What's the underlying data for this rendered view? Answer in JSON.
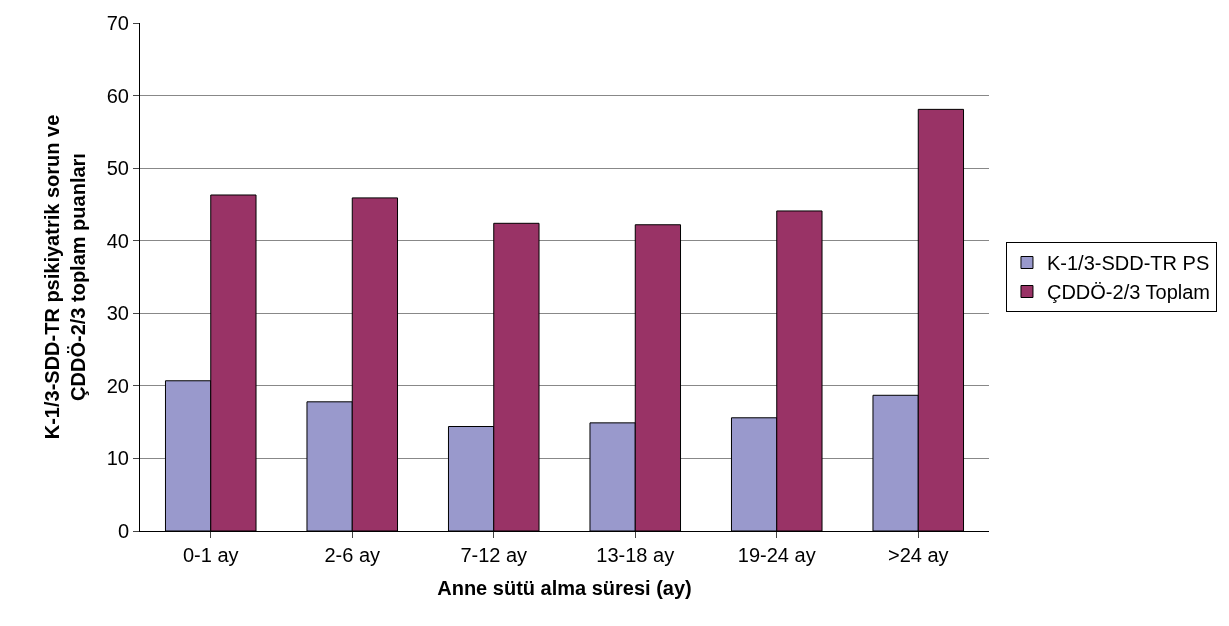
{
  "chart_data": {
    "type": "bar",
    "xlabel": "Anne sütü alma süresi (ay)",
    "ylabel": "K-1/3-SDD-TR psikiyatrik sorun ve ÇDDÖ-2/3 toplam puanları",
    "categories": [
      "0-1 ay",
      "2-6 ay",
      "7-12 ay",
      "13-18 ay",
      "19-24 ay",
      ">24 ay"
    ],
    "series": [
      {
        "name": "K-1/3-SDD-TR PS",
        "color": "#9999cc",
        "values": [
          20.7,
          17.8,
          14.4,
          14.9,
          15.6,
          18.7
        ]
      },
      {
        "name": "ÇDDÖ-2/3 Toplam",
        "color": "#993366",
        "values": [
          46.3,
          45.9,
          42.4,
          42.2,
          44.1,
          58.1
        ]
      }
    ],
    "ylim": [
      0,
      70
    ],
    "yticks": [
      0,
      10,
      20,
      30,
      40,
      50,
      60,
      70
    ],
    "grid": "y",
    "legend": "right"
  }
}
